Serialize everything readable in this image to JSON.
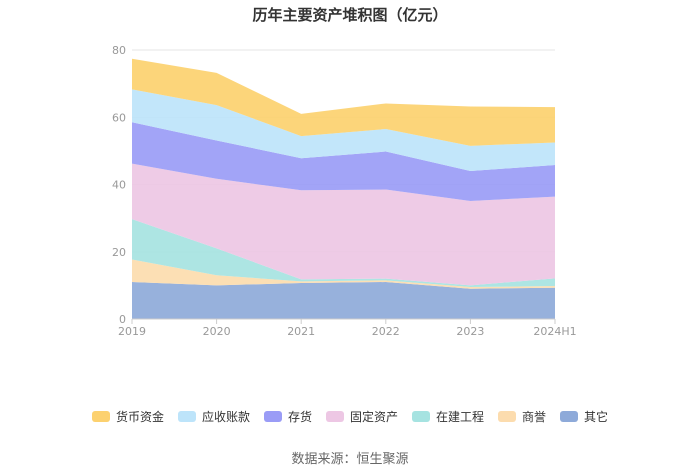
{
  "chart_data": {
    "type": "area",
    "stacked": true,
    "title": "历年主要资产堆积图（亿元）",
    "categories": [
      "2019",
      "2020",
      "2021",
      "2022",
      "2023",
      "2024H1"
    ],
    "ylim": [
      0,
      80
    ],
    "yticks": [
      "0",
      "20",
      "40",
      "60",
      "80"
    ],
    "grid": true,
    "legend_position": "bottom",
    "series": [
      {
        "name": "其它",
        "color": "#8eaad9",
        "values": [
          11.0,
          10.0,
          10.7,
          11.0,
          9.0,
          9.3
        ]
      },
      {
        "name": "商誉",
        "color": "#fcdcae",
        "values": [
          6.7,
          3.0,
          0.5,
          0.5,
          0.5,
          0.5
        ]
      },
      {
        "name": "在建工程",
        "color": "#a6e3e1",
        "values": [
          12.0,
          8.0,
          0.6,
          0.5,
          0.5,
          2.3
        ]
      },
      {
        "name": "固定资产",
        "color": "#edc7e4",
        "values": [
          16.5,
          20.7,
          26.5,
          26.5,
          25.1,
          24.3
        ]
      },
      {
        "name": "存货",
        "color": "#9a9cf6",
        "values": [
          12.3,
          11.4,
          9.5,
          11.3,
          8.9,
          9.4
        ]
      },
      {
        "name": "应收账款",
        "color": "#bde4fa",
        "values": [
          9.8,
          10.5,
          6.6,
          6.7,
          7.5,
          6.7
        ]
      },
      {
        "name": "货币资金",
        "color": "#fcd16f",
        "values": [
          9.1,
          9.6,
          6.6,
          7.6,
          11.7,
          10.5
        ]
      }
    ]
  },
  "source": "数据来源：恒生聚源"
}
